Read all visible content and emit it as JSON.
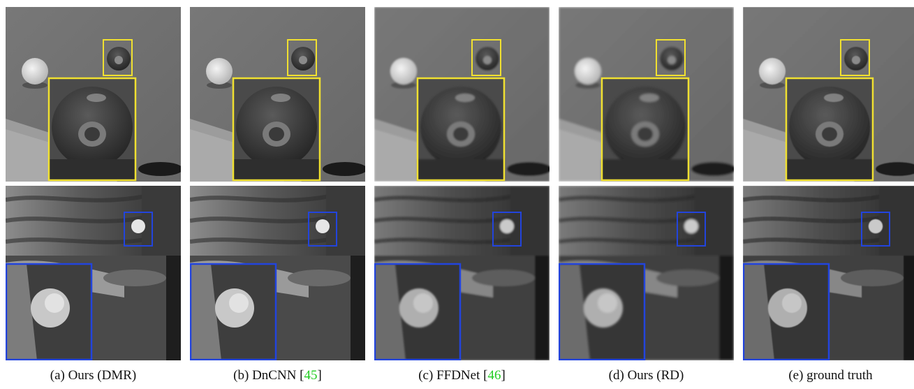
{
  "figure": {
    "captions": [
      {
        "text": "(a) Ours (DMR)",
        "ref": ""
      },
      {
        "text": "(b) DnCNN [",
        "ref": "45",
        "tail": "]"
      },
      {
        "text": "(c) FFDNet [",
        "ref": "46",
        "tail": "]"
      },
      {
        "text": "(d) Ours (RD)",
        "ref": ""
      },
      {
        "text": "(e) ground truth",
        "ref": ""
      }
    ],
    "colors": {
      "top_zoom_box": "#f0e030",
      "bottom_zoom_box": "#2244dd",
      "citation": "#22cc22"
    }
  }
}
